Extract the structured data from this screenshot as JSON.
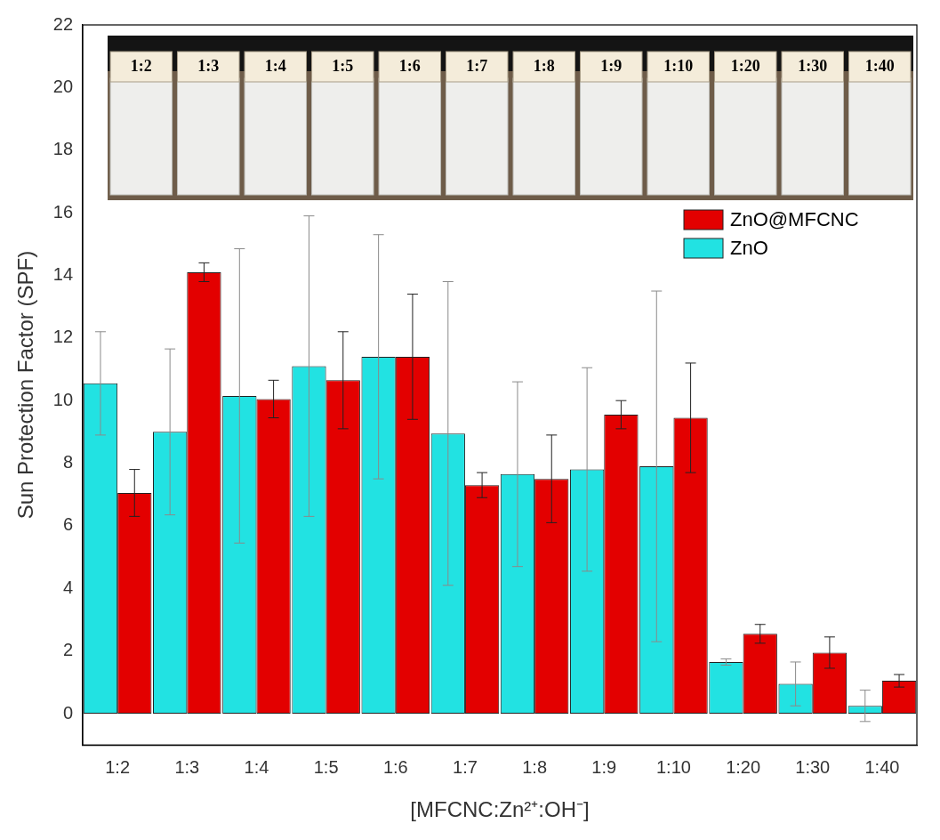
{
  "chart_data": {
    "type": "bar",
    "x_label": "[MFCNC:Zn²⁺:OH⁻]",
    "y_label": "Sun Protection Factor (SPF)",
    "categories": [
      "1:2",
      "1:3",
      "1:4",
      "1:5",
      "1:6",
      "1:7",
      "1:8",
      "1:9",
      "1:10",
      "1:20",
      "1:30",
      "1:40"
    ],
    "series": [
      {
        "name": "ZnO",
        "color": "#22e2e2",
        "values": [
          10.55,
          9.0,
          10.15,
          11.1,
          11.4,
          8.95,
          7.65,
          7.8,
          7.9,
          1.65,
          0.95,
          0.25
        ],
        "errors": [
          1.65,
          2.65,
          4.7,
          4.8,
          3.9,
          4.85,
          2.95,
          3.25,
          5.6,
          0.1,
          0.7,
          0.5
        ]
      },
      {
        "name": "ZnO@MFCNC",
        "color": "#e30000",
        "values": [
          7.05,
          14.1,
          10.05,
          10.65,
          11.4,
          7.3,
          7.5,
          9.55,
          9.45,
          2.55,
          1.95,
          1.05
        ],
        "errors": [
          0.75,
          0.3,
          0.6,
          1.55,
          2.0,
          0.4,
          1.4,
          0.45,
          1.75,
          0.3,
          0.5,
          0.2
        ]
      }
    ],
    "ylim": [
      -1,
      22
    ],
    "yticks": [
      0,
      2,
      4,
      6,
      8,
      10,
      12,
      14,
      16,
      18,
      20,
      22
    ],
    "grid": false,
    "legend": "upper right"
  }
}
